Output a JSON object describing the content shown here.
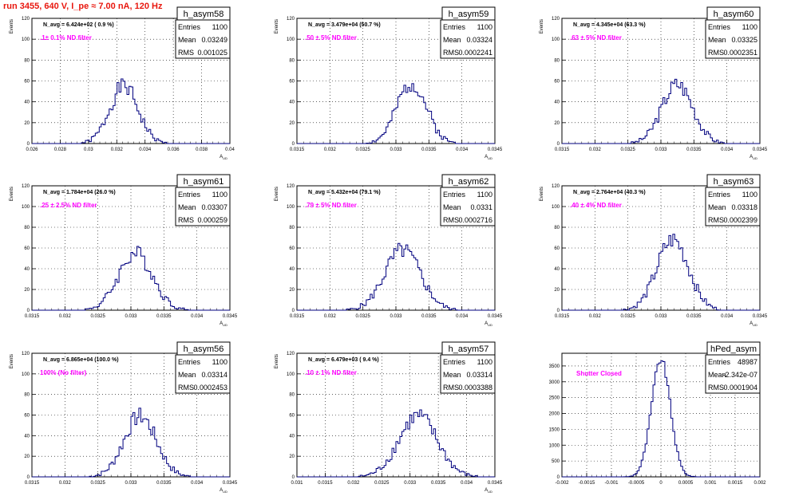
{
  "page_title": "run 3455,   640 V, I_pe ≈ 7.00 nA, 120 Hz",
  "colors": {
    "title": "#e8170e",
    "annotation": "#ff00ff",
    "histogram": "#00007f",
    "grid": "#000000"
  },
  "stat_labels": {
    "entries": "Entries",
    "mean": "Mean",
    "rms": "RMS"
  },
  "chart_data": [
    {
      "type": "histogram",
      "name": "h_asym58",
      "navg": "N_avg = 6.424e+02 ( 0.9 %)",
      "filter": ".1± 0.1% ND filter",
      "stats": {
        "entries": "1100",
        "mean": "0.03249",
        "rms": "0.001025"
      },
      "ylabel": "Events",
      "xlabel": "A_UD",
      "xlim": [
        0.026,
        0.04
      ],
      "ylim": [
        0,
        120
      ],
      "xticks": [
        "0.026",
        "0.028",
        "0.03",
        "0.032",
        "0.034",
        "0.036",
        "0.038",
        "0.04"
      ],
      "yticks": [
        "0",
        "20",
        "40",
        "60",
        "80",
        "100",
        "120"
      ],
      "peak": 55,
      "center": 0.0325,
      "sigma": 0.001,
      "seed": 1
    },
    {
      "type": "histogram",
      "name": "h_asym59",
      "navg": "N_avg = 3.479e+04 (50.7 %)",
      "filter": ".50 ± 5% ND filter",
      "stats": {
        "entries": "1100",
        "mean": "0.03324",
        "rms": "0.0002241"
      },
      "ylabel": "Events",
      "xlabel": "A_UD",
      "xlim": [
        0.0315,
        0.0345
      ],
      "ylim": [
        0,
        120
      ],
      "xticks": [
        "0.0315",
        "0.032",
        "0.0325",
        "0.033",
        "0.0335",
        "0.034",
        "0.0345"
      ],
      "yticks": [
        "0",
        "20",
        "40",
        "60",
        "80",
        "100",
        "120"
      ],
      "peak": 58,
      "center": 0.03324,
      "sigma": 0.000224,
      "seed": 2
    },
    {
      "type": "histogram",
      "name": "h_asym60",
      "navg": "N_avg = 4.345e+04 (63.3 %)",
      "filter": ".63 ± 5% ND filter",
      "stats": {
        "entries": "1100",
        "mean": "0.03325",
        "rms": "0.0002351"
      },
      "ylabel": "Events",
      "xlabel": "A_UD",
      "xlim": [
        0.0315,
        0.0345
      ],
      "ylim": [
        0,
        120
      ],
      "xticks": [
        "0.0315",
        "0.032",
        "0.0325",
        "0.033",
        "0.0335",
        "0.034",
        "0.0345"
      ],
      "yticks": [
        "0",
        "20",
        "40",
        "60",
        "80",
        "100",
        "120"
      ],
      "peak": 57,
      "center": 0.03325,
      "sigma": 0.000235,
      "seed": 3
    },
    {
      "type": "histogram",
      "name": "h_asym61",
      "navg": "N_avg = 1.784e+04 (26.0 %)",
      "filter": ".25 ± 2.5% ND filter",
      "stats": {
        "entries": "1100",
        "mean": "0.03307",
        "rms": "0.000259"
      },
      "ylabel": "Events",
      "xlabel": "A_UD",
      "xlim": [
        0.0315,
        0.0345
      ],
      "ylim": [
        0,
        120
      ],
      "xticks": [
        "0.0315",
        "0.032",
        "0.0325",
        "0.033",
        "0.0335",
        "0.034",
        "0.0345"
      ],
      "yticks": [
        "0",
        "20",
        "40",
        "60",
        "80",
        "100",
        "120"
      ],
      "peak": 55,
      "center": 0.03307,
      "sigma": 0.000259,
      "seed": 4
    },
    {
      "type": "histogram",
      "name": "h_asym62",
      "navg": "N_avg = 5.432e+04 (79.1 %)",
      "filter": ".79 ± 5% ND filter",
      "stats": {
        "entries": "1100",
        "mean": "0.0331",
        "rms": "0.0002716"
      },
      "ylabel": "Events",
      "xlabel": "A_UD",
      "xlim": [
        0.0315,
        0.0345
      ],
      "ylim": [
        0,
        120
      ],
      "xticks": [
        "0.0315",
        "0.032",
        "0.0325",
        "0.033",
        "0.0335",
        "0.034",
        "0.0345"
      ],
      "yticks": [
        "0",
        "20",
        "40",
        "60",
        "80",
        "100",
        "120"
      ],
      "peak": 58,
      "center": 0.0331,
      "sigma": 0.000272,
      "seed": 5
    },
    {
      "type": "histogram",
      "name": "h_asym63",
      "navg": "N_avg = 2.764e+04 (40.3 %)",
      "filter": ".40 ± 4% ND filter",
      "stats": {
        "entries": "1100",
        "mean": "0.03318",
        "rms": "0.0002399"
      },
      "ylabel": "Events",
      "xlabel": "A_UD",
      "xlim": [
        0.0315,
        0.0345
      ],
      "ylim": [
        0,
        120
      ],
      "xticks": [
        "0.0315",
        "0.032",
        "0.0325",
        "0.033",
        "0.0335",
        "0.034",
        "0.0345"
      ],
      "yticks": [
        "0",
        "20",
        "40",
        "60",
        "80",
        "100",
        "120"
      ],
      "peak": 68,
      "center": 0.03318,
      "sigma": 0.00024,
      "seed": 6
    },
    {
      "type": "histogram",
      "name": "h_asym56",
      "navg": "N_avg = 6.865e+04 (100.0 %)",
      "filter": "100% (No filter)",
      "stats": {
        "entries": "1100",
        "mean": "0.03314",
        "rms": "0.0002453"
      },
      "ylabel": "Events",
      "xlabel": "A_UD",
      "xlim": [
        0.0315,
        0.0345
      ],
      "ylim": [
        0,
        120
      ],
      "xticks": [
        "0.0315",
        "0.032",
        "0.0325",
        "0.033",
        "0.0335",
        "0.034",
        "0.0345"
      ],
      "yticks": [
        "0",
        "20",
        "40",
        "60",
        "80",
        "100",
        "120"
      ],
      "peak": 59,
      "center": 0.03314,
      "sigma": 0.000245,
      "seed": 7
    },
    {
      "type": "histogram",
      "name": "h_asym57",
      "navg": "N_avg = 6.479e+03 ( 9.4 %)",
      "filter": ".10 ± 1% ND filter",
      "stats": {
        "entries": "1100",
        "mean": "0.03314",
        "rms": "0.0003388"
      },
      "ylabel": "Events",
      "xlabel": "A_UD",
      "xlim": [
        0.031,
        0.0345
      ],
      "ylim": [
        0,
        120
      ],
      "xticks": [
        "0.031",
        "0.0315",
        "0.032",
        "0.0325",
        "0.033",
        "0.0335",
        "0.034",
        "0.0345"
      ],
      "yticks": [
        "0",
        "20",
        "40",
        "60",
        "80",
        "100",
        "120"
      ],
      "peak": 59,
      "center": 0.03314,
      "sigma": 0.000339,
      "seed": 8
    },
    {
      "type": "histogram",
      "name": "hPed_asym",
      "navg": "",
      "filter": "Shutter Closed",
      "stats": {
        "entries": "48987",
        "mean": "-2.342e-07",
        "rms": "0.0001904"
      },
      "ylabel": "",
      "xlabel": "",
      "xlim": [
        -0.002,
        0.002
      ],
      "ylim": [
        0,
        3900
      ],
      "xticks": [
        "-0.002",
        "-0.0015",
        "-0.001",
        "-0.0005",
        "0",
        "0.0005",
        "0.001",
        "0.0015",
        "0.002"
      ],
      "yticks": [
        "0",
        "500",
        "1000",
        "1500",
        "2000",
        "2500",
        "3000",
        "3500"
      ],
      "peak": 3700,
      "center": 0.0,
      "sigma": 0.00019,
      "seed": 9
    }
  ]
}
